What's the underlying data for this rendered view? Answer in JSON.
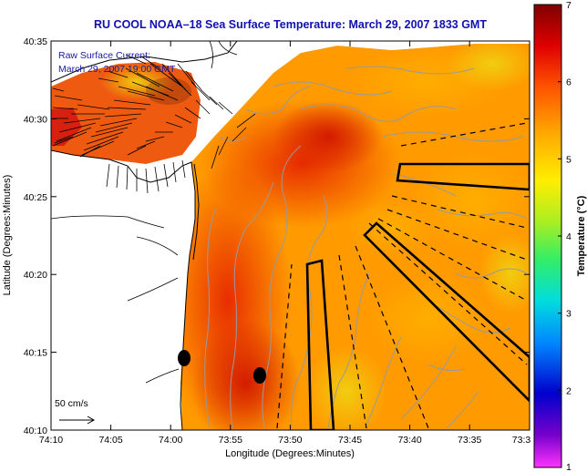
{
  "title": "RU COOL  NOAA–18  Sea Surface Temperature:  March 29, 2007 1833 GMT",
  "inset": {
    "line1": "Raw Surface Current:",
    "line2": "March 29, 2007 19:00 GMT"
  },
  "scale_label": "50 cm/s",
  "x_axis": {
    "label": "Longitude (Degrees:Minutes)",
    "ticks": [
      "74:10",
      "74:05",
      "74:00",
      "73:55",
      "73:50",
      "73:45",
      "73:40",
      "73:35",
      "73:3"
    ]
  },
  "y_axis": {
    "label": "Latitude (Degrees:Minutes)",
    "ticks": [
      "40:35",
      "40:30",
      "40:25",
      "40:20",
      "40:15",
      "40:10"
    ]
  },
  "colorbar": {
    "label": "Temperature (°C)",
    "ticks": [
      "7",
      "6",
      "5",
      "4",
      "3",
      "2",
      "1"
    ],
    "range": [
      1,
      7
    ]
  },
  "colors": {
    "title": "#1010b0",
    "inset_text": "#1a1aa0",
    "land": "#ffffff",
    "bathymetry": "#9a9a9a",
    "colorbar_stops": [
      "#ff33ff",
      "#7700cc",
      "#0000cc",
      "#0088ff",
      "#00dddd",
      "#33ee66",
      "#aaee22",
      "#ffee00",
      "#ffaa00",
      "#ff5500",
      "#e00000",
      "#800000"
    ]
  }
}
